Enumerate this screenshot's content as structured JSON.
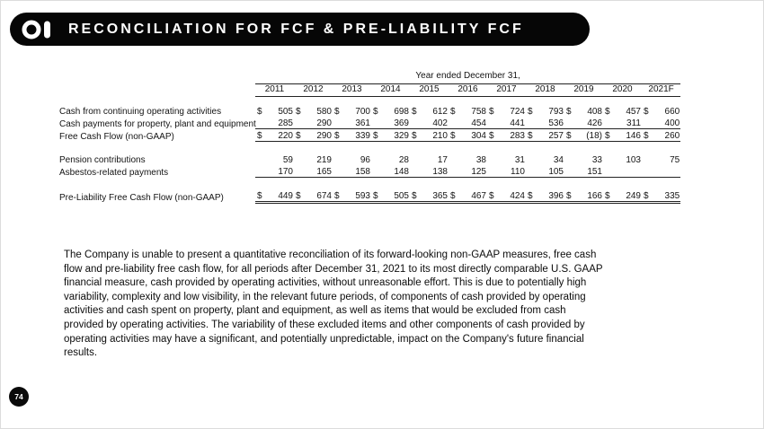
{
  "header": {
    "title": "RECONCILIATION FOR FCF & PRE-LIABILITY FCF",
    "logo": "O-I"
  },
  "table": {
    "caption": "Year ended December 31,",
    "years": [
      "2011",
      "2012",
      "2013",
      "2014",
      "2015",
      "2016",
      "2017",
      "2018",
      "2019",
      "2020",
      "2021F"
    ],
    "rows": [
      {
        "label": "Cash from continuing operating activities",
        "dollar": true,
        "values": [
          "505",
          "580",
          "700",
          "698",
          "612",
          "758",
          "724",
          "793",
          "408",
          "457",
          "660"
        ]
      },
      {
        "label": "Cash payments for property, plant and equipment",
        "dollar": false,
        "values": [
          "285",
          "290",
          "361",
          "369",
          "402",
          "454",
          "441",
          "536",
          "426",
          "311",
          "400"
        ]
      },
      {
        "label": "Free Cash Flow (non-GAAP)",
        "dollar": true,
        "values": [
          "220",
          "290",
          "339",
          "329",
          "210",
          "304",
          "283",
          "257",
          "(18)",
          "146",
          "260"
        ]
      },
      {
        "label": "Pension contributions",
        "dollar": false,
        "values": [
          "59",
          "219",
          "96",
          "28",
          "17",
          "38",
          "31",
          "34",
          "33",
          "103",
          "75"
        ]
      },
      {
        "label": "Asbestos-related payments",
        "dollar": false,
        "values": [
          "170",
          "165",
          "158",
          "148",
          "138",
          "125",
          "110",
          "105",
          "151",
          "",
          ""
        ]
      },
      {
        "label": "Pre-Liability Free Cash Flow (non-GAAP)",
        "dollar": true,
        "values": [
          "449",
          "674",
          "593",
          "505",
          "365",
          "467",
          "424",
          "396",
          "166",
          "249",
          "335"
        ]
      }
    ]
  },
  "disclaimer": "The Company is unable to present a quantitative reconciliation of its forward-looking non-GAAP measures, free cash flow and pre-liability free cash flow, for all periods after December 31, 2021 to its most directly comparable U.S. GAAP financial measure, cash provided by operating activities, without unreasonable effort.  This is due to potentially high variability, complexity and low visibility, in the relevant future periods, of components of cash provided by operating activities and cash spent on property, plant and equipment, as well as items that would be excluded from cash provided by operating activities.  The variability of these excluded items and other components of cash provided by operating activities may have a significant, and potentially unpredictable, impact on the Company's future financial results.",
  "page_number": "74"
}
